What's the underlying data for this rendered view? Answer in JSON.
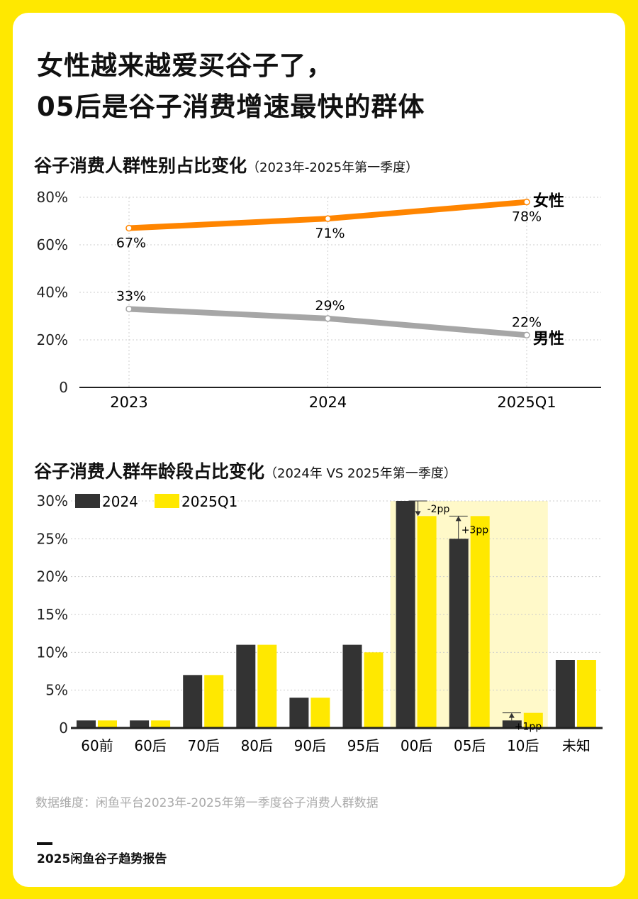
{
  "title": [
    "女性越来越爱买谷子了，",
    "05后是谷子消费增速最快的群体"
  ],
  "chart_data": [
    {
      "type": "line",
      "title": "谷子消费人群性别占比变化",
      "subtitle": "（2023年-2025年第一季度）",
      "categories": [
        "2023",
        "2024",
        "2025Q1"
      ],
      "ylim": [
        0,
        80
      ],
      "yticks": [
        "0",
        "20%",
        "40%",
        "60%",
        "80%"
      ],
      "grid": true,
      "series": [
        {
          "name": "女性",
          "values": [
            67,
            71,
            78
          ],
          "labels": [
            "67%",
            "71%",
            "78%"
          ],
          "color": "#FF8500"
        },
        {
          "name": "男性",
          "values": [
            33,
            29,
            22
          ],
          "labels": [
            "33%",
            "29%",
            "22%"
          ],
          "color": "#A6A6A6"
        }
      ]
    },
    {
      "type": "bar",
      "title": "谷子消费人群年龄段占比变化",
      "subtitle": "（2024年 VS 2025年第一季度）",
      "categories": [
        "60前",
        "60后",
        "70后",
        "80后",
        "90后",
        "95后",
        "00后",
        "05后",
        "10后",
        "未知"
      ],
      "ylim": [
        0,
        30
      ],
      "yticks": [
        "0",
        "5%",
        "10%",
        "15%",
        "20%",
        "25%",
        "30%"
      ],
      "grid": true,
      "legend": "top-left",
      "series": [
        {
          "name": "2024",
          "values": [
            1,
            1,
            7,
            11,
            4,
            11,
            30,
            25,
            1,
            9
          ],
          "color": "#333333"
        },
        {
          "name": "2025Q1",
          "values": [
            1,
            1,
            7,
            11,
            4,
            10,
            28,
            28,
            2,
            9
          ],
          "color": "#FFE800"
        }
      ],
      "highlight": {
        "categories": [
          "00后",
          "05后",
          "10后"
        ],
        "color": "#FFF9C9"
      },
      "annotations": [
        {
          "category": "00后",
          "text": "-2pp"
        },
        {
          "category": "05后",
          "text": "+3pp"
        },
        {
          "category": "10后",
          "text": "+1pp"
        }
      ]
    }
  ],
  "footer": {
    "source": "数据维度：闲鱼平台2023年-2025年第一季度谷子消费人群数据",
    "brand": "2025闲鱼谷子趋势报告"
  }
}
